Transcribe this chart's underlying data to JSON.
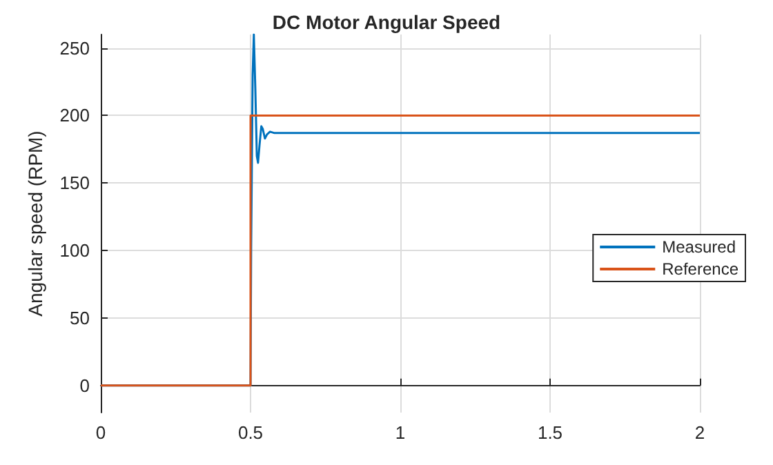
{
  "chart_data": {
    "type": "line",
    "title": "DC Motor Angular Speed",
    "ylabel": "Angular speed (RPM)",
    "xlim": [
      0,
      2
    ],
    "xticks": [
      0,
      0.5,
      1,
      1.5,
      2
    ],
    "ylim": [
      -20,
      260
    ],
    "yticks": [
      0,
      50,
      100,
      150,
      200,
      250
    ],
    "grid": true,
    "legend": "right",
    "line_style": "solid",
    "marker": "none",
    "series": [
      {
        "name": "Measured",
        "color": "#0072bd",
        "x": [
          0,
          0.5,
          0.502,
          0.507,
          0.511,
          0.516,
          0.521,
          0.525,
          0.53,
          0.536,
          0.541,
          0.548,
          0.555,
          0.565,
          0.58,
          0.6,
          2
        ],
        "values": [
          0,
          0,
          100,
          230,
          260,
          220,
          170,
          165,
          178,
          192,
          190,
          183,
          186,
          188,
          187,
          187,
          187
        ]
      },
      {
        "name": "Reference",
        "color": "#d95319",
        "x": [
          0,
          0.5,
          0.5,
          2
        ],
        "values": [
          0,
          0,
          200,
          200
        ]
      }
    ]
  }
}
